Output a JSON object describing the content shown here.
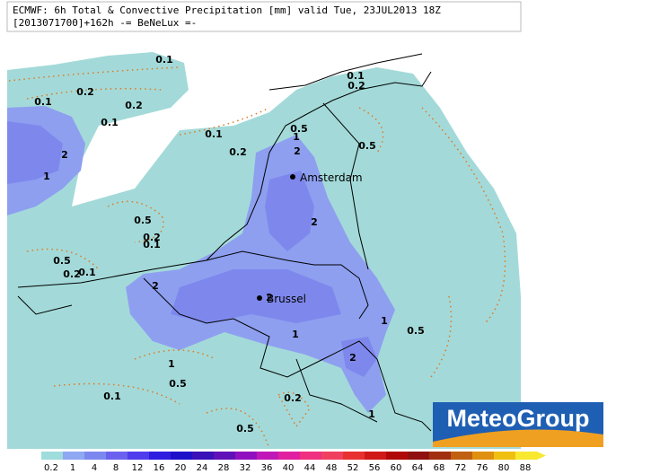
{
  "header": {
    "line1": "ECMWF: 6h Total & Convective Precipitation [mm] valid Tue, 23JUL2013 18Z",
    "line2": "[2013071700]+162h -= BeNeLux =-"
  },
  "contour_labels": [
    "0.1",
    "0.1",
    "0.2",
    "0.2",
    "0.2",
    "0.1",
    "0.1",
    "0.1",
    "0.5",
    "1",
    "0.2",
    "2",
    "2",
    "0.5",
    "1",
    "2",
    "0.5",
    "0.2",
    "0.1",
    "0.5",
    "0.2",
    "0.1",
    "2",
    "2",
    "1",
    "0.5",
    "1",
    "1",
    "2",
    "0.5",
    "0.1",
    "0.2",
    "1",
    "0.5"
  ],
  "cities": [
    {
      "name": "Amsterdam"
    },
    {
      "name": "Brussel"
    }
  ],
  "logo": "MeteoGroup",
  "colorbar": [
    {
      "label": "0.2",
      "color": "#9fdcdc"
    },
    {
      "label": "1",
      "color": "#8ea8f2"
    },
    {
      "label": "4",
      "color": "#7c88f0"
    },
    {
      "label": "8",
      "color": "#6a62ee"
    },
    {
      "label": "12",
      "color": "#4f3cec"
    },
    {
      "label": "16",
      "color": "#2f1ee0"
    },
    {
      "label": "20",
      "color": "#1e10c8"
    },
    {
      "label": "24",
      "color": "#3a10b8"
    },
    {
      "label": "28",
      "color": "#6010b8"
    },
    {
      "label": "32",
      "color": "#9010c0"
    },
    {
      "label": "36",
      "color": "#c018b8"
    },
    {
      "label": "40",
      "color": "#e020a0"
    },
    {
      "label": "44",
      "color": "#f03080"
    },
    {
      "label": "48",
      "color": "#f04060"
    },
    {
      "label": "52",
      "color": "#e83030"
    },
    {
      "label": "56",
      "color": "#d01818"
    },
    {
      "label": "60",
      "color": "#b00808"
    },
    {
      "label": "64",
      "color": "#901010"
    },
    {
      "label": "68",
      "color": "#a03010"
    },
    {
      "label": "72",
      "color": "#c06010"
    },
    {
      "label": "76",
      "color": "#e09010"
    },
    {
      "label": "80",
      "color": "#f0c010"
    },
    {
      "label": "88",
      "color": "#f8e830"
    }
  ]
}
